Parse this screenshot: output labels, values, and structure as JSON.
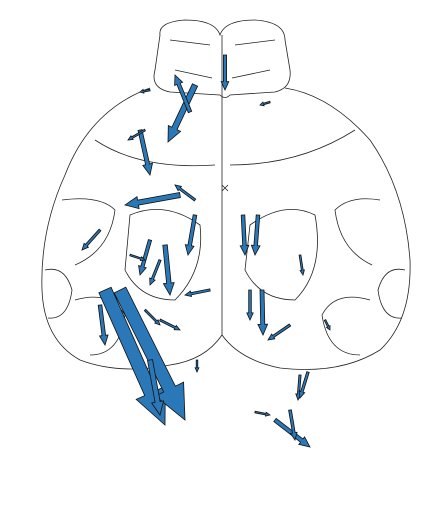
{
  "chart_data": {
    "type": "quiver",
    "color": "#2b78b8",
    "x": [
      195,
      190,
      150,
      225,
      270,
      140,
      145,
      180,
      195,
      100,
      195,
      160,
      243,
      258,
      300,
      250,
      262,
      290,
      210,
      120,
      100,
      105,
      120,
      150,
      300,
      308,
      255,
      275,
      290,
      325,
      197,
      160,
      150,
      165,
      130,
      145
    ],
    "y": [
      85,
      112,
      90,
      55,
      102,
      130,
      130,
      195,
      200,
      230,
      215,
      260,
      215,
      215,
      255,
      290,
      290,
      325,
      290,
      295,
      305,
      290,
      290,
      360,
      375,
      372,
      412,
      420,
      410,
      320,
      360,
      320,
      240,
      245,
      255,
      310
    ],
    "u": [
      -27,
      -15,
      -10,
      0,
      -10,
      10,
      -17,
      -55,
      -20,
      -18,
      -7,
      -10,
      2,
      -3,
      3,
      0,
      1,
      -22,
      -25,
      -10,
      5,
      60,
      65,
      10,
      -2,
      -8,
      15,
      35,
      5,
      5,
      0,
      20,
      -10,
      5,
      15,
      15
    ],
    "v": [
      57,
      -37,
      2,
      35,
      3,
      45,
      10,
      10,
      -15,
      20,
      40,
      25,
      40,
      40,
      20,
      30,
      45,
      15,
      5,
      10,
      40,
      135,
      130,
      55,
      25,
      26,
      3,
      27,
      30,
      10,
      12,
      10,
      35,
      50,
      5,
      15
    ]
  }
}
